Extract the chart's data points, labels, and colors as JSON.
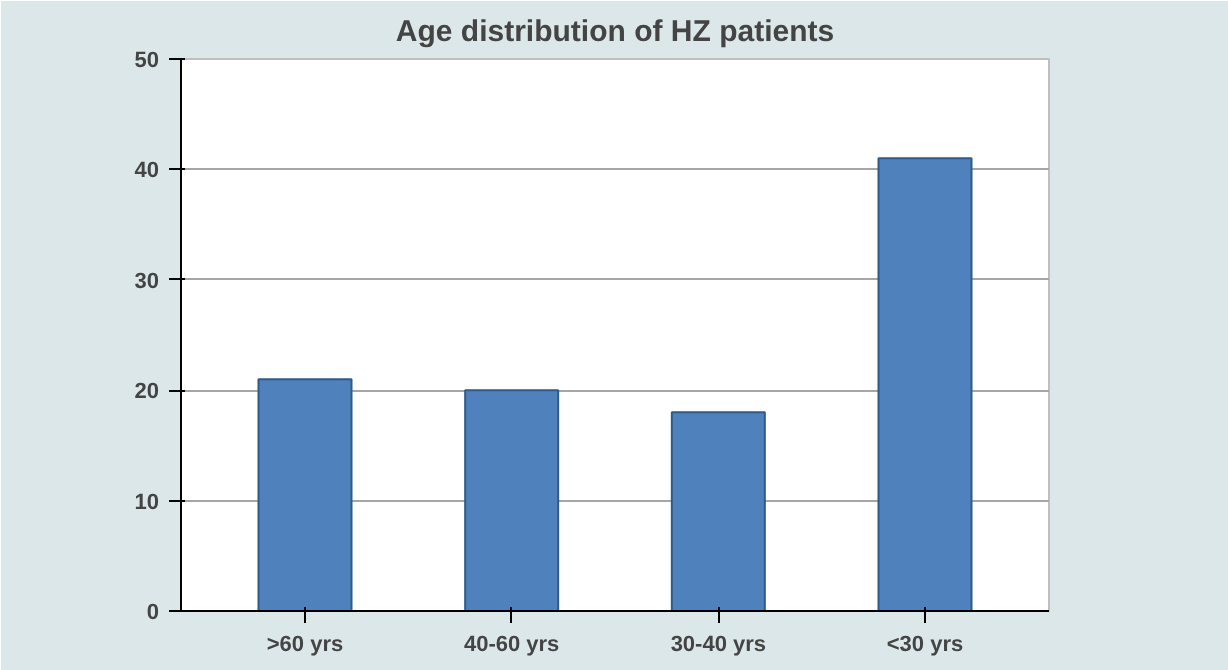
{
  "chart_data": {
    "type": "bar",
    "title": "Age distribution of HZ patients",
    "categories": [
      ">60 yrs",
      "40-60 yrs",
      "30-40 yrs",
      "<30 yrs"
    ],
    "values": [
      21,
      20,
      18,
      41
    ],
    "color": "#4f81bd",
    "ylim": [
      0,
      50
    ],
    "yticks": [
      0,
      10,
      20,
      30,
      40,
      50
    ],
    "grid": "y"
  }
}
